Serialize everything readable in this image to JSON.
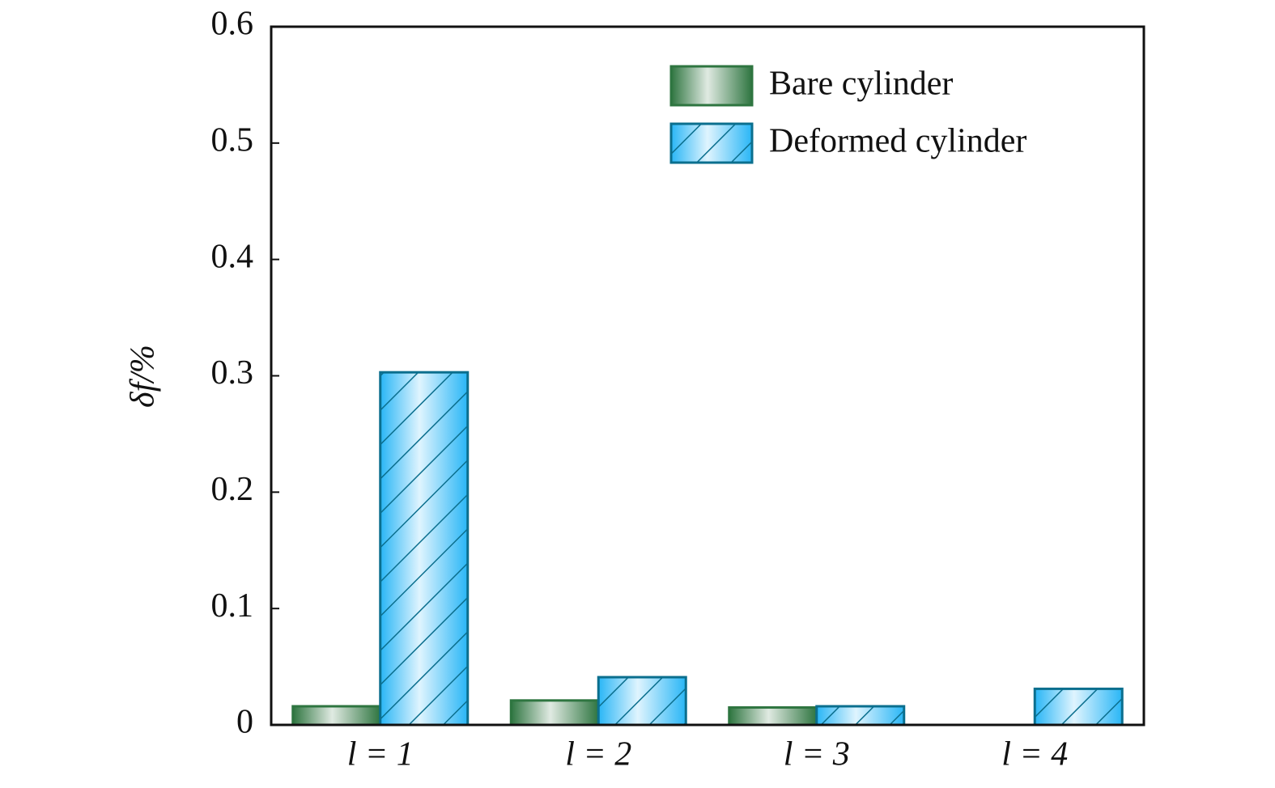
{
  "chart_data": {
    "type": "bar",
    "y_label": "δf/%",
    "categories": [
      "l = 1",
      "l = 2",
      "l = 3",
      "l = 4"
    ],
    "series": [
      {
        "name": "Bare cylinder",
        "color": "#2e7540",
        "values": [
          0.016,
          0.021,
          0.015,
          0
        ]
      },
      {
        "name": "Deformed cylinder",
        "color": "#29b6f6",
        "values": [
          0.303,
          0.041,
          0.016,
          0.031
        ],
        "pattern": "hatch"
      }
    ],
    "ylim": [
      0,
      0.6
    ],
    "yticks": [
      0,
      0.1,
      0.2,
      0.3,
      0.4,
      0.5,
      0.6
    ],
    "grid": false,
    "legend": "upper right"
  }
}
